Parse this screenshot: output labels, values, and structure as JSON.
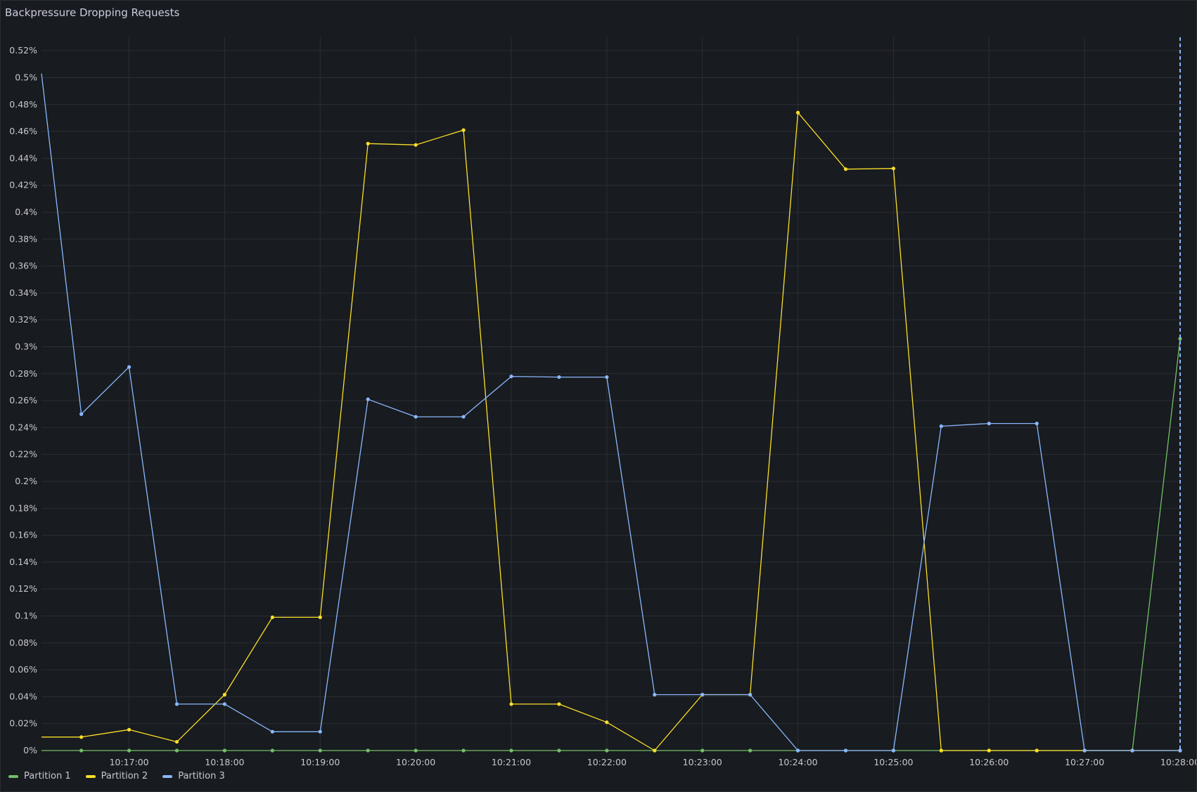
{
  "panel": {
    "title": "Backpressure Dropping Requests"
  },
  "chart_data": {
    "type": "line",
    "title": "Backpressure Dropping Requests",
    "xlabel": "",
    "ylabel": "",
    "y_unit": "%",
    "ylim": [
      0,
      0.53
    ],
    "grid": true,
    "legend_position": "bottom-left",
    "y_ticks": [
      "0%",
      "0.02%",
      "0.04%",
      "0.06%",
      "0.08%",
      "0.1%",
      "0.12%",
      "0.14%",
      "0.16%",
      "0.18%",
      "0.2%",
      "0.22%",
      "0.24%",
      "0.26%",
      "0.28%",
      "0.3%",
      "0.32%",
      "0.34%",
      "0.36%",
      "0.38%",
      "0.4%",
      "0.42%",
      "0.44%",
      "0.46%",
      "0.48%",
      "0.5%",
      "0.52%"
    ],
    "y_tick_values": [
      0,
      0.02,
      0.04,
      0.06,
      0.08,
      0.1,
      0.12,
      0.14,
      0.16,
      0.18,
      0.2,
      0.22,
      0.24,
      0.26,
      0.28,
      0.3,
      0.32,
      0.34,
      0.36,
      0.38,
      0.4,
      0.42,
      0.44,
      0.46,
      0.48,
      0.5,
      0.52
    ],
    "x_ticks": [
      "10:17:00",
      "10:18:00",
      "10:19:00",
      "10:20:00",
      "10:21:00",
      "10:22:00",
      "10:23:00",
      "10:24:00",
      "10:25:00",
      "10:26:00",
      "10:27:00",
      "10:28:00"
    ],
    "x": [
      "10:16:05",
      "10:16:30",
      "10:17:00",
      "10:17:30",
      "10:18:00",
      "10:18:30",
      "10:19:00",
      "10:19:30",
      "10:20:00",
      "10:20:30",
      "10:21:00",
      "10:21:30",
      "10:22:00",
      "10:22:30",
      "10:23:00",
      "10:23:30",
      "10:24:00",
      "10:24:30",
      "10:25:00",
      "10:25:30",
      "10:26:00",
      "10:26:30",
      "10:27:00",
      "10:27:30",
      "10:28:00"
    ],
    "x_range": [
      "10:16:05",
      "10:28:00"
    ],
    "series": [
      {
        "name": "Partition 1",
        "color": "#73bf69",
        "values": [
          0,
          0,
          0,
          0,
          0,
          0,
          0,
          0,
          0,
          0,
          0,
          0,
          0,
          0,
          0,
          0,
          0,
          0,
          0,
          0,
          0,
          0,
          0,
          0,
          0.306
        ]
      },
      {
        "name": "Partition 2",
        "color": "#fade2a",
        "values": [
          0.01,
          0.01,
          0.0155,
          0.0065,
          0.0415,
          0.099,
          0.099,
          0.451,
          0.45,
          0.461,
          0.0345,
          0.0345,
          0.021,
          0,
          0.0415,
          0.0415,
          0.474,
          0.432,
          0.4325,
          0,
          0,
          0,
          0,
          0,
          0
        ]
      },
      {
        "name": "Partition 3",
        "color": "#8ab8ff",
        "values": [
          0.503,
          0.25,
          0.285,
          0.0345,
          0.0345,
          0.014,
          0.014,
          0.261,
          0.248,
          0.248,
          0.278,
          0.2775,
          0.2775,
          0.0415,
          0.0415,
          0.0415,
          0,
          0,
          0,
          0.241,
          0.243,
          0.243,
          0,
          0,
          0
        ]
      }
    ]
  }
}
